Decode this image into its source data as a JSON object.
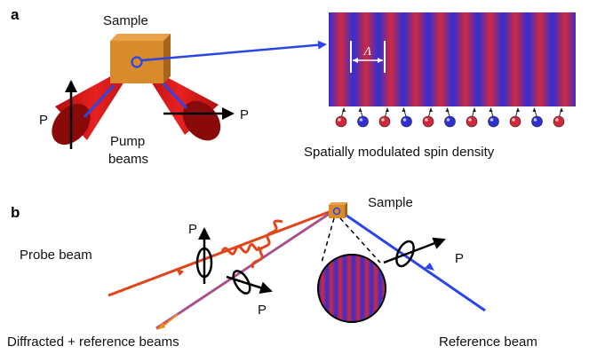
{
  "panel_a": {
    "letter": "a",
    "sample_label": "Sample",
    "polarization_left": "P",
    "polarization_right": "P",
    "pump_label_line1": "Pump",
    "pump_label_line2": "beams",
    "grating_period_symbol": "Λ",
    "grating_caption": "Spatially modulated spin density",
    "spin_count": 11
  },
  "panel_b": {
    "letter": "b",
    "sample_label": "Sample",
    "probe_label": "Probe beam",
    "polarization_probe": "P",
    "polarization_diffracted": "P",
    "polarization_reference": "P",
    "diffracted_label": "Diffracted + reference beams",
    "reference_label": "Reference beam"
  },
  "colors": {
    "sample": "#d98a2b",
    "pump": "#d01010",
    "pump_dark": "#8a0a0a",
    "probe": "#e0461c",
    "reference": "#2a45e8",
    "grating_red": "#d2283c",
    "grating_blue": "#2f2fd6"
  }
}
